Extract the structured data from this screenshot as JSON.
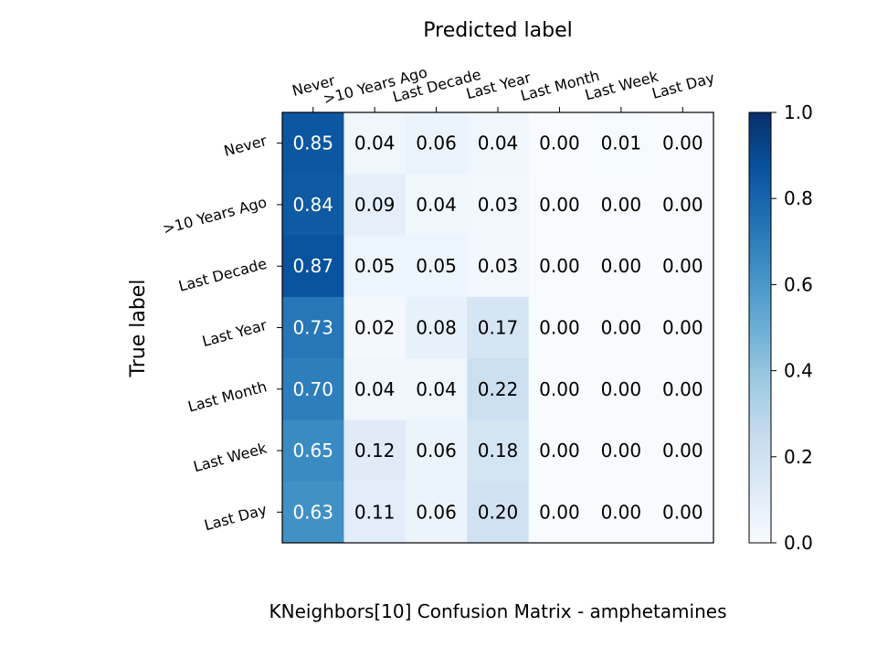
{
  "chart_data": {
    "type": "heatmap",
    "title": "KNeighbors[10]  Confusion Matrix - amphetamines",
    "xlabel": "Predicted label",
    "ylabel": "True label",
    "x_categories": [
      "Never",
      ">10 Years Ago",
      "Last Decade",
      "Last Year",
      "Last Month",
      "Last Week",
      "Last Day"
    ],
    "y_categories": [
      "Never",
      ">10 Years Ago",
      "Last Decade",
      "Last Year",
      "Last Month",
      "Last Week",
      "Last Day"
    ],
    "values": [
      [
        0.85,
        0.04,
        0.06,
        0.04,
        0.0,
        0.01,
        0.0
      ],
      [
        0.84,
        0.09,
        0.04,
        0.03,
        0.0,
        0.0,
        0.0
      ],
      [
        0.87,
        0.05,
        0.05,
        0.03,
        0.0,
        0.0,
        0.0
      ],
      [
        0.73,
        0.02,
        0.08,
        0.17,
        0.0,
        0.0,
        0.0
      ],
      [
        0.7,
        0.04,
        0.04,
        0.22,
        0.0,
        0.0,
        0.0
      ],
      [
        0.65,
        0.12,
        0.06,
        0.18,
        0.0,
        0.0,
        0.0
      ],
      [
        0.63,
        0.11,
        0.06,
        0.2,
        0.0,
        0.0,
        0.0
      ]
    ],
    "value_format": "0.00",
    "colormap": "Blues",
    "colorbar": {
      "range": [
        0.0,
        1.0
      ],
      "ticks": [
        "0.0",
        "0.2",
        "0.4",
        "0.6",
        "0.8",
        "1.0"
      ]
    },
    "x_tick_position": "top",
    "grid": false
  }
}
